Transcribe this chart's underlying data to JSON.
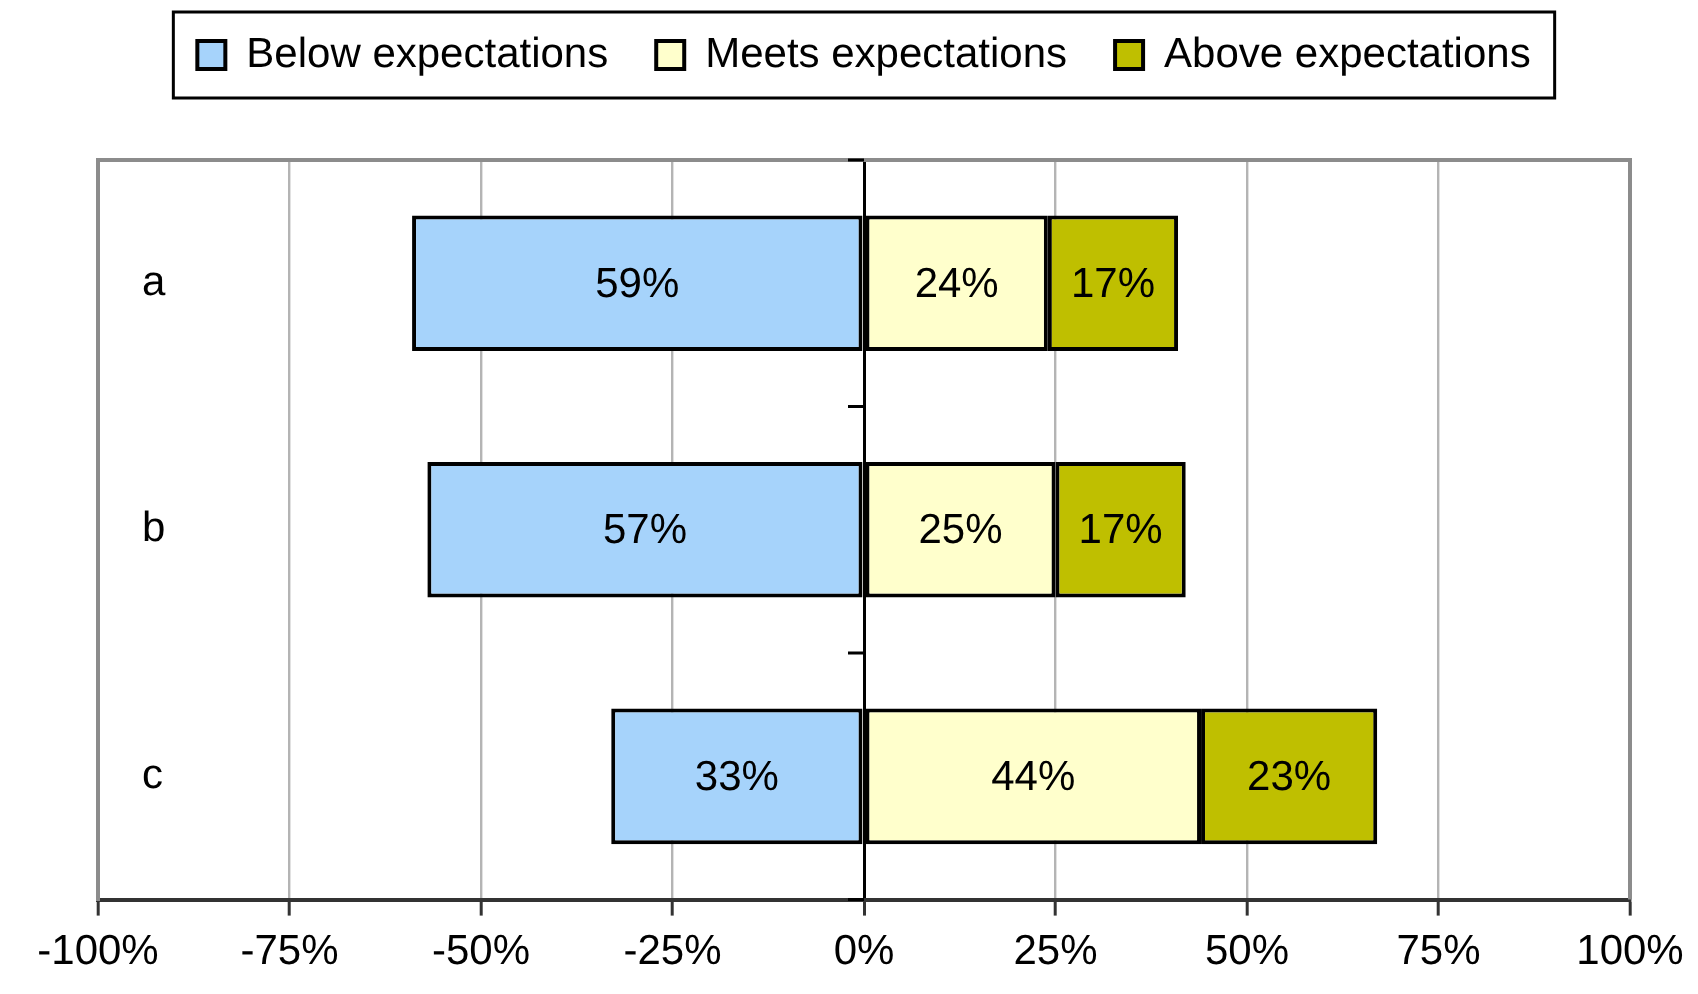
{
  "chart_data": {
    "type": "bar",
    "orientation": "horizontal",
    "stacked": true,
    "legend": "top",
    "grid": "x",
    "categories": [
      "a",
      "b",
      "c"
    ],
    "series": [
      {
        "name": "Below expectations",
        "color": "#a6d3fb",
        "values": [
          59,
          57,
          33
        ],
        "base": [
          -59,
          -57,
          -33
        ],
        "value_labels": [
          "59%",
          "57%",
          "33%"
        ]
      },
      {
        "name": "Meets expectations",
        "color": "#ffffcc",
        "values": [
          24,
          25,
          44
        ],
        "value_labels": [
          "24%",
          "25%",
          "44%"
        ]
      },
      {
        "name": "Above expectations",
        "color": "#bfbf00",
        "values": [
          17,
          17,
          23
        ],
        "value_labels": [
          "17%",
          "17%",
          "23%"
        ]
      }
    ],
    "xlim": [
      -100,
      100
    ],
    "xticks": [
      {
        "value": -100,
        "label": "-100%"
      },
      {
        "value": -75,
        "label": "-75%"
      },
      {
        "value": -50,
        "label": "-50%"
      },
      {
        "value": -25,
        "label": "-25%"
      },
      {
        "value": 0,
        "label": "0%"
      },
      {
        "value": 25,
        "label": "25%"
      },
      {
        "value": 50,
        "label": "50%"
      },
      {
        "value": 75,
        "label": "75%"
      },
      {
        "value": 100,
        "label": "100%"
      }
    ]
  }
}
